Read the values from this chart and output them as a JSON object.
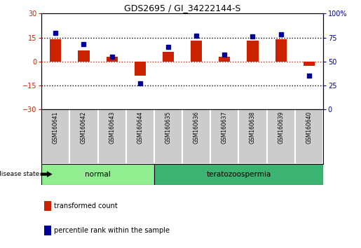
{
  "title": "GDS2695 / GI_34222144-S",
  "samples": [
    "GSM160641",
    "GSM160642",
    "GSM160643",
    "GSM160644",
    "GSM160635",
    "GSM160636",
    "GSM160637",
    "GSM160638",
    "GSM160639",
    "GSM160640"
  ],
  "transformed_count": [
    14,
    7,
    3,
    -9,
    6,
    13,
    3,
    13,
    14,
    -3
  ],
  "percentile_rank": [
    80,
    68,
    55,
    27,
    65,
    77,
    57,
    76,
    78,
    35
  ],
  "disease_groups": [
    {
      "label": "normal",
      "samples": 4,
      "color": "#90EE90"
    },
    {
      "label": "teratozoospermia",
      "samples": 6,
      "color": "#3CB371"
    }
  ],
  "left_ylim": [
    -30,
    30
  ],
  "left_yticks": [
    -30,
    -15,
    0,
    15,
    30
  ],
  "right_ylim": [
    0,
    100
  ],
  "right_yticks": [
    0,
    25,
    50,
    75,
    100
  ],
  "right_yticklabels": [
    "0",
    "25",
    "50",
    "75",
    "100%"
  ],
  "bar_color_red": "#CC2200",
  "bar_color_blue": "#000099",
  "hline_red": 0,
  "hlines_dotted": [
    -15,
    15
  ],
  "bg_color": "#FFFFFF",
  "plot_bg": "#FFFFFF",
  "legend_items": [
    {
      "label": "transformed count",
      "color": "#CC2200"
    },
    {
      "label": "percentile rank within the sample",
      "color": "#000099"
    }
  ],
  "bar_width": 0.4,
  "marker_size": 5
}
